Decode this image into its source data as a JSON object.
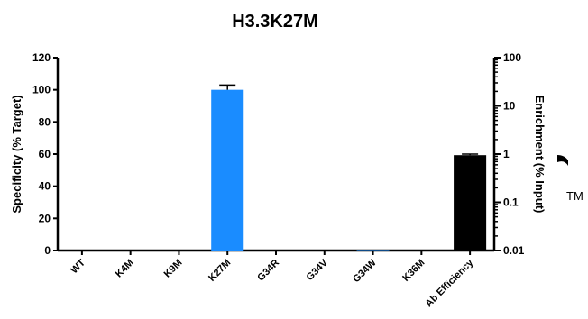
{
  "chart_data": {
    "type": "bar",
    "title": "H3.3K27M",
    "categories": [
      "WT",
      "K4M",
      "K9M",
      "K27M",
      "G34R",
      "G34V",
      "G34W",
      "K36M",
      "Ab Efficiency"
    ],
    "series": [
      {
        "axis": "left",
        "values": [
          0,
          0,
          0,
          100,
          0,
          0,
          0.3,
          0,
          null
        ],
        "error": [
          0,
          0,
          0,
          3,
          0,
          0,
          0,
          0,
          null
        ],
        "color": "#1a8cff"
      },
      {
        "axis": "right",
        "values": [
          null,
          null,
          null,
          null,
          null,
          null,
          null,
          null,
          0.95
        ],
        "error": [
          null,
          null,
          null,
          null,
          null,
          null,
          null,
          null,
          0.05
        ],
        "color": "#000000"
      }
    ],
    "ylabel": "Specificity (% Target)",
    "ylim": [
      0,
      120
    ],
    "yticks": [
      0,
      20,
      40,
      60,
      80,
      100,
      120
    ],
    "y2label": "Enrichment (% Input)",
    "y2lim": [
      0.01,
      100
    ],
    "y2scale": "log",
    "y2ticks": [
      0.01,
      0.1,
      1,
      10,
      100
    ],
    "y2ticklabels": [
      "0.01",
      "0.1",
      "1",
      "10",
      "100"
    ],
    "grid": false
  },
  "trademark": "TM"
}
